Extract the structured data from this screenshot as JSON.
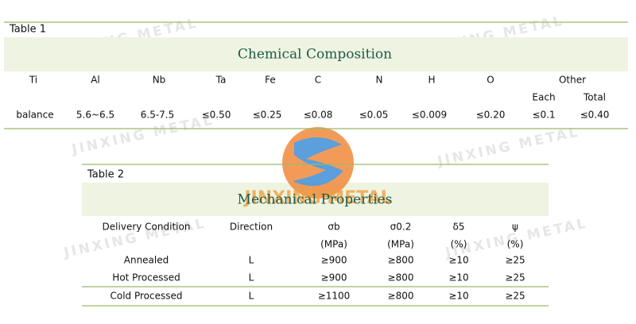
{
  "watermark": "JINXING METAL",
  "table1": {
    "label": "Table 1",
    "title": "Chemical Composition",
    "headers": [
      "Ti",
      "Al",
      "Nb",
      "Ta",
      "Fe",
      "C",
      "N",
      "H",
      "O",
      "Other"
    ],
    "subheaders": [
      "Each",
      "Total"
    ],
    "rows": [
      [
        "balance",
        "5.6~6.5",
        "6.5-7.5",
        "≤0.50",
        "≤0.25",
        "≤0.08",
        "≤0.05",
        "≤0.009",
        "≤0.20",
        "≤0.1",
        "≤0.40"
      ]
    ]
  },
  "table2": {
    "label": "Table 2",
    "title": "Mechanical Properties",
    "headers": [
      "Delivery Condition",
      "Direction",
      "σb",
      "σ0.2",
      "δ5",
      "ψ"
    ],
    "units": [
      "(MPa)",
      "(MPa)",
      "(%)",
      "(%)"
    ],
    "rows": [
      [
        "Annealed",
        "L",
        "≥900",
        "≥800",
        "≥10",
        "≥25"
      ],
      [
        "Hot Processed",
        "L",
        "≥900",
        "≥800",
        "≥10",
        "≥25"
      ],
      [
        "Cold Processed",
        "L",
        "≥1100",
        "≥800",
        "≥10",
        "≥25"
      ]
    ]
  }
}
